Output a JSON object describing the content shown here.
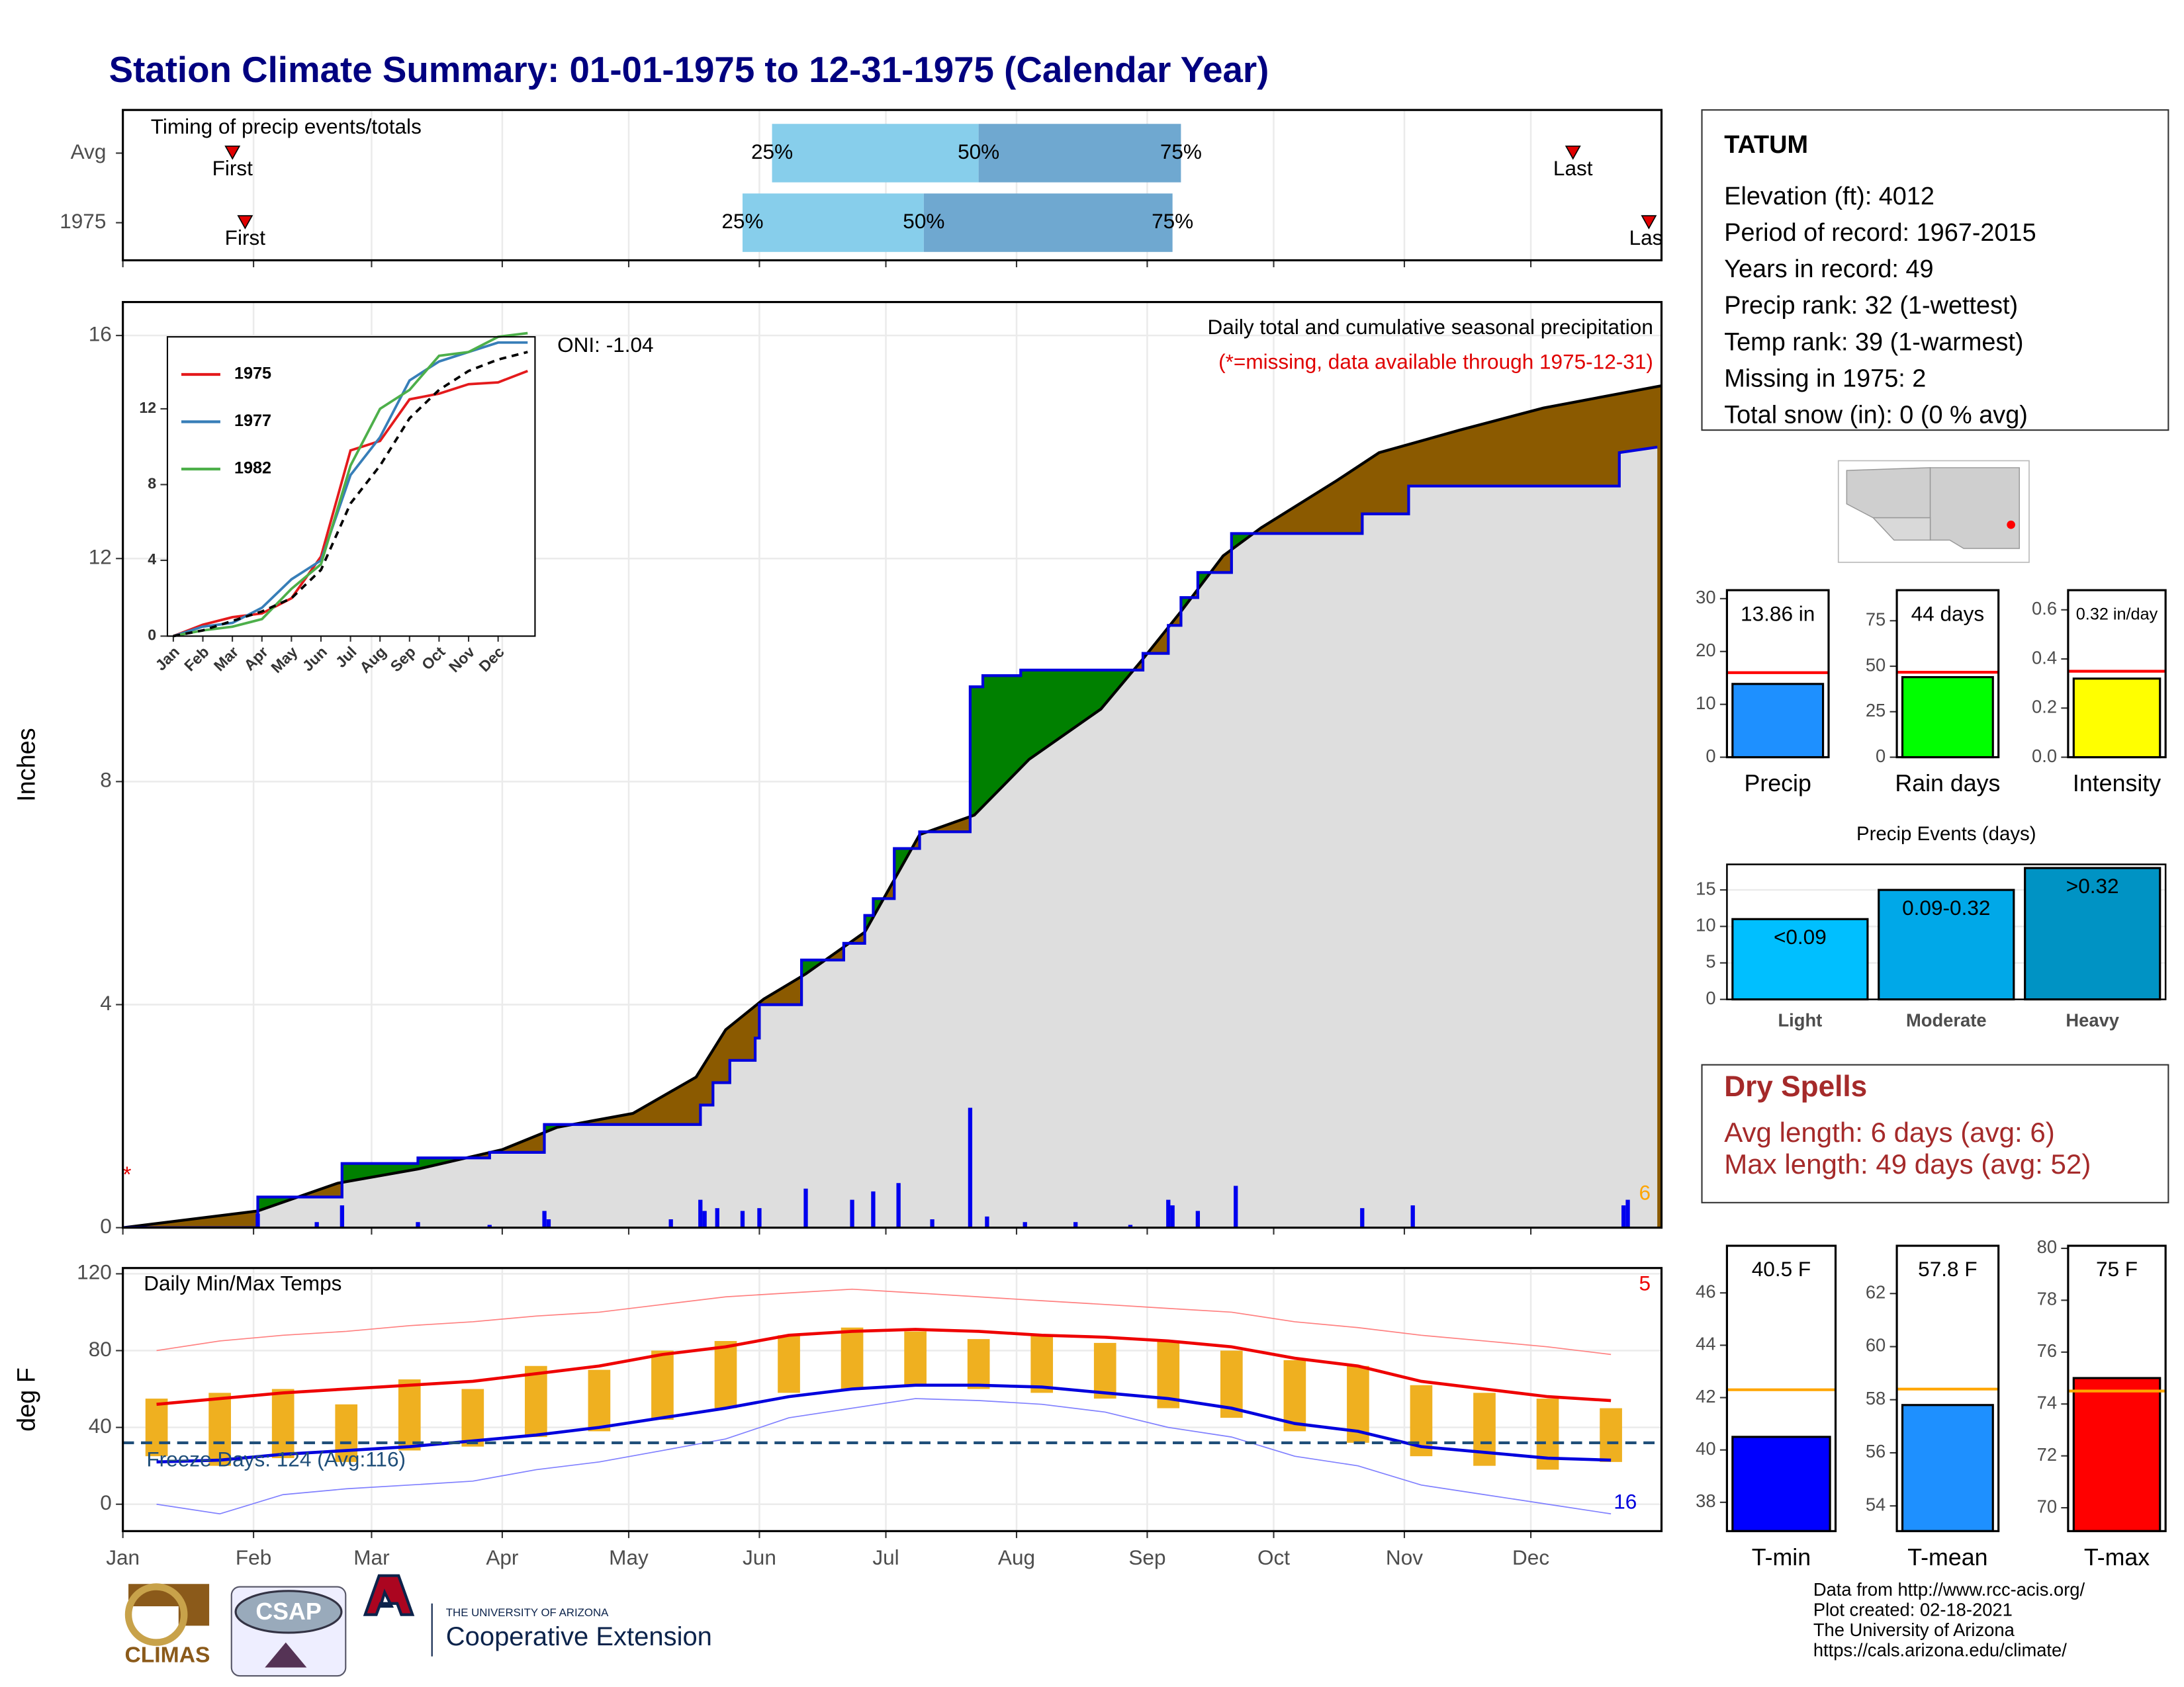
{
  "title": "Station Climate Summary: 01-01-1975 to 12-31-1975 (Calendar Year)",
  "chart_data": [
    {
      "type": "timing",
      "title": "Timing of precip events/totals",
      "categories": [
        "Avg",
        "1975"
      ],
      "xlim": [
        0,
        365
      ],
      "first": [
        26,
        29
      ],
      "last": [
        344,
        362
      ],
      "first_label": "First",
      "last_label": "Last",
      "percentiles": [
        [
          154,
          203,
          251
        ],
        [
          147,
          190,
          249
        ]
      ],
      "percentile_labels": [
        "25%",
        "50%",
        "75%"
      ],
      "colors": [
        "#87ceeb",
        "#6fa8d0"
      ],
      "marker_color": "#e00000"
    },
    {
      "type": "cumulative_precip",
      "ylabel": "Inches",
      "xlim": [
        0,
        365
      ],
      "ylim": [
        0,
        16.6
      ],
      "yticks": [
        0,
        4,
        8,
        12,
        16
      ],
      "grid": true,
      "annotations": [
        "Daily total and cumulative seasonal precipitation",
        "(*=missing, data available through 1975-12-31)",
        "ONI: -1.04"
      ],
      "missing_marker": "*",
      "count_label": "6",
      "cumulative": {
        "color": "#0000dd",
        "x": [
          0,
          32,
          32,
          52,
          52,
          70,
          70,
          87,
          87,
          100,
          100,
          137,
          137,
          140,
          140,
          144,
          144,
          150,
          150,
          151,
          151,
          161,
          161,
          171,
          171,
          176,
          176,
          178,
          178,
          183,
          183,
          189,
          189,
          201,
          201,
          204,
          204,
          213,
          213,
          242,
          242,
          248,
          248,
          251,
          251,
          255,
          255,
          263,
          263,
          294,
          294,
          305,
          305,
          355,
          355,
          364
        ],
        "values": [
          0,
          0,
          0.55,
          0.55,
          1.15,
          1.15,
          1.25,
          1.25,
          1.35,
          1.35,
          1.85,
          1.85,
          2.2,
          2.2,
          2.6,
          2.6,
          3.0,
          3.0,
          3.4,
          3.4,
          4.0,
          4.0,
          4.8,
          4.8,
          5.1,
          5.1,
          5.6,
          5.6,
          5.9,
          5.9,
          6.8,
          6.8,
          7.1,
          7.1,
          9.7,
          9.7,
          9.9,
          9.9,
          10.0,
          10.0,
          10.3,
          10.3,
          10.8,
          10.8,
          11.3,
          11.3,
          11.75,
          11.75,
          12.45,
          12.45,
          12.8,
          12.8,
          13.3,
          13.3,
          13.9,
          14.0
        ]
      },
      "average": {
        "color": "#000000",
        "x": [
          0,
          32,
          51,
          70,
          90,
          103,
          121,
          136,
          143,
          152,
          162,
          176,
          189,
          202,
          215,
          232,
          242,
          251,
          261,
          270,
          288,
          298,
          317,
          337,
          365
        ],
        "values": [
          0,
          0.3,
          0.8,
          1.05,
          1.4,
          1.8,
          2.05,
          2.7,
          3.55,
          4.1,
          4.55,
          5.3,
          7.05,
          7.4,
          8.4,
          9.3,
          10.2,
          11.05,
          12.05,
          12.55,
          13.4,
          13.9,
          14.3,
          14.7,
          15.1
        ]
      },
      "daily": {
        "color": "#0000ee",
        "x": [
          32,
          46,
          52,
          70,
          87,
          100,
          101,
          130,
          137,
          138,
          141,
          147,
          151,
          162,
          173,
          178,
          184,
          192,
          201,
          205,
          214,
          226,
          239,
          248,
          249,
          255,
          264,
          294,
          306,
          356,
          357
        ],
        "values": [
          0.25,
          0.1,
          0.4,
          0.1,
          0.05,
          0.3,
          0.15,
          0.15,
          0.5,
          0.3,
          0.35,
          0.3,
          0.35,
          0.7,
          0.5,
          0.65,
          0.8,
          0.15,
          2.15,
          0.2,
          0.1,
          0.1,
          0.05,
          0.5,
          0.4,
          0.3,
          0.75,
          0.35,
          0.4,
          0.4,
          0.5
        ]
      },
      "above_color": "#008000",
      "below_color": "#8b5a00",
      "fill_color": "#dedede"
    },
    {
      "type": "inset_line",
      "xlim": [
        -0.2,
        12.25
      ],
      "ylim": [
        0,
        15.8
      ],
      "yticks": [
        0,
        4,
        8,
        12
      ],
      "xticks": [
        {
          "value": 0,
          "label": "Jan"
        },
        {
          "value": 1,
          "label": "Feb"
        },
        {
          "value": 2,
          "label": "Mar"
        },
        {
          "value": 3,
          "label": "Apr"
        },
        {
          "value": 4,
          "label": "May"
        },
        {
          "value": 5,
          "label": "Jun"
        },
        {
          "value": 6,
          "label": "Jul"
        },
        {
          "value": 7,
          "label": "Aug"
        },
        {
          "value": 8,
          "label": "Sep"
        },
        {
          "value": 9,
          "label": "Oct"
        },
        {
          "value": 10,
          "label": "Nov"
        },
        {
          "value": 11,
          "label": "Dec"
        }
      ],
      "x": [
        0,
        1,
        2,
        3,
        4,
        5,
        6,
        7,
        8,
        9,
        10,
        11,
        12
      ],
      "series": [
        {
          "name": "1975",
          "color": "#e41a1c",
          "values": [
            0,
            0.6,
            1.0,
            1.2,
            2.0,
            4.2,
            9.8,
            10.3,
            12.5,
            12.8,
            13.3,
            13.4,
            14.0
          ]
        },
        {
          "name": "1977",
          "color": "#377eb8",
          "values": [
            0,
            0.5,
            0.7,
            1.5,
            3.0,
            4.0,
            8.5,
            10.5,
            13.5,
            14.5,
            15.0,
            15.5,
            15.5
          ]
        },
        {
          "name": "1982",
          "color": "#4daf4a",
          "values": [
            0,
            0.3,
            0.5,
            0.9,
            2.5,
            3.8,
            9.0,
            12.0,
            13.0,
            14.8,
            15.0,
            15.8,
            16.0
          ]
        }
      ],
      "average": [
        0,
        0.3,
        0.8,
        1.3,
        2.0,
        3.5,
        7.0,
        9.0,
        11.5,
        13.0,
        14.0,
        14.6,
        15.0
      ]
    },
    {
      "type": "temperature",
      "title": "Daily Min/Max Temps",
      "ylabel": "deg F",
      "xlim": [
        0,
        365
      ],
      "ylim": [
        -14,
        123
      ],
      "yticks": [
        0,
        40,
        80,
        120
      ],
      "grid": true,
      "xticks": [
        {
          "value": 0,
          "label": "Jan"
        },
        {
          "value": 31,
          "label": "Feb"
        },
        {
          "value": 59,
          "label": "Mar"
        },
        {
          "value": 90,
          "label": "Apr"
        },
        {
          "value": 120,
          "label": "May"
        },
        {
          "value": 151,
          "label": "Jun"
        },
        {
          "value": 181,
          "label": "Jul"
        },
        {
          "value": 212,
          "label": "Aug"
        },
        {
          "value": 243,
          "label": "Sep"
        },
        {
          "value": 273,
          "label": "Oct"
        },
        {
          "value": 304,
          "label": "Nov"
        },
        {
          "value": 334,
          "label": "Dec"
        }
      ],
      "freeze_line": 32,
      "freeze_label": "Freeze Days: 124 (Avg:116)",
      "high_count": "5",
      "low_count": "16",
      "x": [
        8,
        23,
        38,
        53,
        68,
        83,
        98,
        113,
        128,
        143,
        158,
        173,
        188,
        203,
        218,
        233,
        248,
        263,
        278,
        293,
        308,
        323,
        338,
        353
      ],
      "tmax": [
        55,
        58,
        60,
        52,
        65,
        60,
        72,
        70,
        80,
        85,
        88,
        92,
        90,
        86,
        88,
        84,
        85,
        80,
        75,
        72,
        62,
        58,
        55,
        50
      ],
      "tmin": [
        25,
        20,
        24,
        22,
        28,
        30,
        35,
        38,
        44,
        50,
        58,
        60,
        62,
        60,
        58,
        55,
        50,
        45,
        38,
        32,
        25,
        20,
        18,
        22
      ],
      "avg_max": [
        52,
        55,
        58,
        60,
        62,
        64,
        68,
        72,
        78,
        82,
        88,
        90,
        91,
        90,
        88,
        87,
        85,
        82,
        76,
        72,
        64,
        60,
        56,
        54
      ],
      "avg_min": [
        22,
        23,
        26,
        28,
        30,
        33,
        36,
        40,
        45,
        50,
        56,
        60,
        62,
        62,
        61,
        58,
        55,
        50,
        42,
        38,
        30,
        27,
        24,
        23
      ],
      "record_max": [
        80,
        85,
        88,
        90,
        93,
        95,
        98,
        100,
        104,
        108,
        110,
        112,
        110,
        108,
        106,
        104,
        102,
        100,
        95,
        92,
        88,
        85,
        82,
        78
      ],
      "record_min": [
        0,
        -5,
        5,
        8,
        10,
        12,
        18,
        22,
        28,
        34,
        45,
        50,
        55,
        54,
        52,
        48,
        40,
        35,
        25,
        20,
        10,
        5,
        0,
        -5
      ],
      "colors": {
        "bar": "#efb020",
        "max": "#ee0000",
        "min": "#0000dd",
        "record_max": "#ff8080",
        "record_min": "#8080ff",
        "freeze": "#1f4e79"
      }
    },
    {
      "type": "summary_bar",
      "xlabel": "Precip",
      "values": [
        13.86
      ],
      "value_labels": [
        "13.86 in"
      ],
      "average": 16.0,
      "ylim": [
        0,
        31.6
      ],
      "yticks": [
        0,
        10,
        20,
        30
      ],
      "color": "#1e90ff",
      "average_color": "#ff0000"
    },
    {
      "type": "summary_bar",
      "xlabel": "Rain days",
      "values": [
        44
      ],
      "value_labels": [
        "44 days"
      ],
      "average": 46.7,
      "ylim": [
        0,
        91.8
      ],
      "yticks": [
        0,
        25,
        50,
        75
      ],
      "color": "#00ff00",
      "average_color": "#ff0000"
    },
    {
      "type": "summary_bar",
      "xlabel": "Intensity",
      "values": [
        0.32
      ],
      "value_labels": [
        "0.32 in/day"
      ],
      "average": 0.35,
      "ylim": [
        0,
        0.68
      ],
      "yticks": [
        {
          "value": 0,
          "label": "0.0"
        },
        0.2,
        0.4,
        0.6
      ],
      "color": "#ffff00",
      "average_color": "#ff0000"
    },
    {
      "type": "events_bar",
      "title": "Precip Events (days)",
      "categories": [
        "Light",
        "Moderate",
        "Heavy"
      ],
      "values": [
        11,
        15,
        18
      ],
      "bar_texts": [
        "<0.09",
        "0.09-0.32",
        ">0.32"
      ],
      "colors": [
        "#00bfff",
        "#00a8e8",
        "#0093c4"
      ],
      "ylim": [
        0,
        18.5
      ],
      "yticks": [
        0,
        5,
        10,
        15
      ],
      "grid": true
    },
    {
      "type": "summary_bar",
      "xlabel": "T-min",
      "values": [
        40.5
      ],
      "value_labels": [
        "40.5 F"
      ],
      "average": 42.3,
      "ylim": [
        36.9,
        47.8
      ],
      "yticks": [
        38,
        40,
        42,
        44,
        46
      ],
      "color": "#0000ff",
      "average_color": "#ffa500"
    },
    {
      "type": "summary_bar",
      "xlabel": "T-mean",
      "values": [
        57.8
      ],
      "value_labels": [
        "57.8 F"
      ],
      "average": 58.4,
      "ylim": [
        53.05,
        63.8
      ],
      "yticks": [
        54,
        56,
        58,
        60,
        62
      ],
      "color": "#1e90ff",
      "average_color": "#ffa500"
    },
    {
      "type": "summary_bar",
      "xlabel": "T-max",
      "values": [
        75
      ],
      "value_labels": [
        "75 F"
      ],
      "average": 74.5,
      "ylim": [
        69.1,
        80.1
      ],
      "yticks": [
        70,
        72,
        74,
        76,
        78,
        80
      ],
      "color": "#ff0000",
      "average_color": "#ffa500"
    }
  ],
  "station": {
    "title": "TATUM",
    "lines": [
      "Elevation (ft): 4012",
      "Period of record: 1967-2015",
      "Years in record: 49",
      "Precip rank: 32 (1-wettest)",
      "Temp rank: 39 (1-warmest)",
      "Missing in 1975: 2",
      "Total snow (in): 0 (0 % avg)"
    ]
  },
  "dry_spells": {
    "title": "Dry Spells",
    "lines": [
      "Avg length: 6 days (avg: 6)",
      "Max length: 49 days (avg: 52)"
    ]
  },
  "logos": {
    "climas": "CLIMAS",
    "csap": "CSAP",
    "university": "THE UNIVERSITY OF ARIZONA",
    "extension": "Cooperative Extension"
  },
  "credits": [
    "Data from http://www.rcc-acis.org/",
    "Plot created: 02-18-2021",
    "The University of Arizona",
    "https://cals.arizona.edu/climate/"
  ]
}
